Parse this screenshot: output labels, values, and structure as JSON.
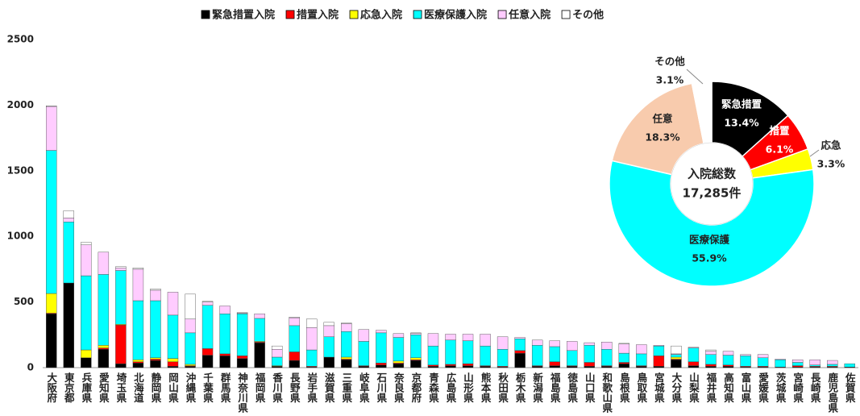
{
  "chart_data": [
    {
      "type": "bar",
      "categories": [
        "大阪府",
        "東京都",
        "兵庫県",
        "愛知県",
        "埼玉県",
        "北海道",
        "静岡県",
        "岡山県",
        "沖縄県",
        "千葉県",
        "群馬県",
        "神奈川県",
        "福岡県",
        "香川県",
        "長野県",
        "岩手県",
        "滋賀県",
        "三重県",
        "岐阜県",
        "石川県",
        "奈良県",
        "京都府",
        "青森県",
        "広島県",
        "山形県",
        "熊本県",
        "秋田県",
        "栃木県",
        "新潟県",
        "福島県",
        "徳島県",
        "山口県",
        "和歌山県",
        "島根県",
        "鳥取県",
        "宮城県",
        "大分県",
        "山梨県",
        "福井県",
        "高知県",
        "富山県",
        "愛媛県",
        "茨城県",
        "宮崎県",
        "長崎県",
        "鹿児島県",
        "佐賀県"
      ],
      "series": [
        {
          "name": "緊急措置入院",
          "color": "#000000",
          "values": [
            410,
            645,
            75,
            140,
            30,
            35,
            55,
            10,
            10,
            95,
            90,
            70,
            190,
            10,
            55,
            5,
            80,
            60,
            10,
            20,
            30,
            55,
            10,
            15,
            15,
            10,
            5,
            110,
            10,
            15,
            10,
            10,
            10,
            30,
            10,
            10,
            60,
            15,
            10,
            10,
            5,
            5,
            5,
            5,
            5,
            5,
            5
          ]
        },
        {
          "name": "措置入院",
          "color": "#ff0000",
          "values": [
            5,
            0,
            0,
            10,
            295,
            10,
            10,
            35,
            5,
            50,
            15,
            20,
            5,
            0,
            65,
            5,
            0,
            5,
            5,
            15,
            5,
            5,
            10,
            10,
            15,
            5,
            5,
            20,
            5,
            30,
            5,
            30,
            5,
            10,
            5,
            80,
            5,
            30,
            15,
            10,
            5,
            5,
            0,
            10,
            5,
            5,
            0
          ]
        },
        {
          "name": "応急入院",
          "color": "#ffff00",
          "values": [
            150,
            0,
            60,
            20,
            5,
            15,
            10,
            25,
            10,
            0,
            0,
            0,
            5,
            5,
            0,
            0,
            0,
            15,
            0,
            0,
            15,
            15,
            0,
            0,
            0,
            0,
            0,
            0,
            0,
            0,
            0,
            0,
            0,
            0,
            0,
            0,
            15,
            0,
            0,
            0,
            0,
            0,
            0,
            0,
            0,
            0,
            0
          ]
        },
        {
          "name": "医療保護入院",
          "color": "#00ffff",
          "values": [
            1090,
            465,
            565,
            540,
            410,
            450,
            435,
            330,
            240,
            330,
            305,
            320,
            175,
            65,
            200,
            125,
            155,
            195,
            185,
            230,
            180,
            175,
            145,
            185,
            175,
            150,
            130,
            90,
            155,
            115,
            115,
            130,
            125,
            70,
            90,
            75,
            20,
            105,
            75,
            75,
            80,
            65,
            55,
            25,
            10,
            15,
            25
          ]
        },
        {
          "name": "任意入院",
          "color": "#ffccff",
          "values": [
            335,
            30,
            235,
            170,
            20,
            240,
            80,
            175,
            105,
            25,
            60,
            5,
            35,
            60,
            60,
            170,
            85,
            60,
            90,
            20,
            30,
            10,
            95,
            45,
            50,
            90,
            95,
            10,
            40,
            45,
            70,
            20,
            55,
            70,
            70,
            5,
            5,
            5,
            25,
            30,
            10,
            25,
            5,
            20,
            40,
            30,
            0
          ]
        },
        {
          "name": "その他",
          "color": "#ffffff",
          "values": [
            5,
            55,
            20,
            0,
            10,
            10,
            10,
            0,
            190,
            5,
            0,
            5,
            0,
            25,
            5,
            65,
            25,
            5,
            0,
            0,
            0,
            5,
            0,
            0,
            0,
            0,
            0,
            0,
            0,
            0,
            0,
            0,
            0,
            5,
            0,
            0,
            60,
            0,
            10,
            0,
            0,
            0,
            0,
            0,
            0,
            0,
            0
          ]
        }
      ],
      "ylim": [
        0,
        2500
      ],
      "yticks": [
        0,
        500,
        1000,
        1500,
        2000,
        2500
      ],
      "legend": "top"
    },
    {
      "type": "pie",
      "categories": [
        "緊急措置",
        "措置",
        "応急",
        "医療保護",
        "任意",
        "その他"
      ],
      "values": [
        13.4,
        6.1,
        3.3,
        55.9,
        18.3,
        3.1
      ],
      "value_labels": [
        "13.4%",
        "6.1%",
        "3.3%",
        "55.9%",
        "18.3%",
        "3.1%"
      ],
      "colors": [
        "#000000",
        "#ff0000",
        "#ffff00",
        "#00ffff",
        "#f8cbad",
        "#ffffff"
      ],
      "center_text": [
        "入院総数",
        "17,285件"
      ]
    }
  ]
}
